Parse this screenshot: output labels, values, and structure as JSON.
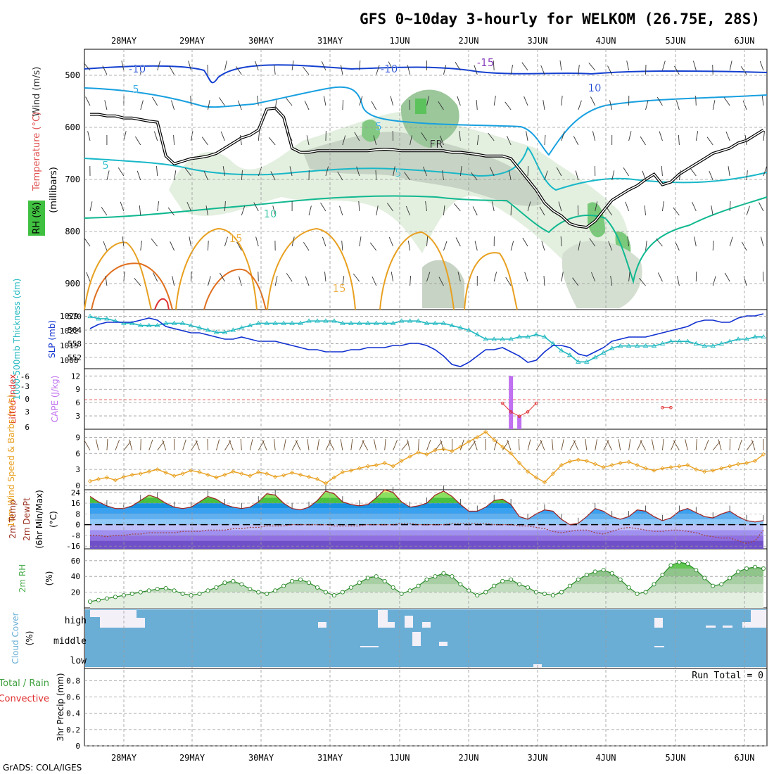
{
  "header": {
    "title": "GFS 0~10day 3-hourly for WELKOM (26.75E, 28S)",
    "credit": "GrADS: COLA/IGES"
  },
  "colors": {
    "rh": "#4caf50",
    "temperature": "#e05050",
    "wind": "#303030",
    "thickness": "#20b8c0",
    "slp": "#1030d0",
    "cape": "#c070f0",
    "lifted": "#e03030",
    "wind10": "#e8a020",
    "rh2m": "#4caf50",
    "cloud": "#6aaed6",
    "cloud_blank": "#f4f0f8",
    "freezing": "#000000"
  },
  "chart_data": {
    "type": "meteogram",
    "date_labels": [
      "28MAY",
      "29MAY",
      "30MAY",
      "31MAY",
      "1JUN",
      "2JUN",
      "3JUN",
      "4JUN",
      "5JUN",
      "6JUN"
    ],
    "time_steps": 81,
    "panels": [
      {
        "id": "upper_air",
        "type": "contour",
        "legend": [
          "Wind (m/s)",
          "Temperature (°C)",
          "RH (%)"
        ],
        "ylabel": "(millibars)",
        "y_ticks": [
          500,
          600,
          700,
          800,
          900
        ],
        "ylim": [
          950,
          450
        ],
        "contour_labels": [
          {
            "text": "-10",
            "at": "28MAY 500mb",
            "series": "Temperature"
          },
          {
            "text": "-10",
            "at": "31MAY-1JUN 495mb",
            "series": "Temperature"
          },
          {
            "text": "-15",
            "at": "2JUN 475mb",
            "series": "Temperature"
          },
          {
            "text": "10",
            "at": "4JUN 525mb",
            "series": "Temperature"
          },
          {
            "text": "5",
            "at": "28MAY 525mb",
            "series": "Temperature"
          },
          {
            "text": "5",
            "at": "1JUN 600mb",
            "series": "Temperature"
          },
          {
            "text": "5",
            "at": "27MAY 655mb",
            "series": "Temperature"
          },
          {
            "text": "5",
            "at": "1JUN 690mb",
            "series": "Temperature"
          },
          {
            "text": "10",
            "at": "31MAY 775mb",
            "series": "Temperature"
          },
          {
            "text": "15",
            "at": "30MAY 815mb",
            "series": "Temperature"
          },
          {
            "text": "15",
            "at": "31MAY 910mb",
            "series": "Temperature"
          },
          {
            "text": "FR",
            "at": "2JUN 640mb",
            "series": "Freezing level"
          }
        ],
        "freezing_level_mb": [
          575,
          575,
          578,
          578,
          582,
          582,
          585,
          588,
          590,
          655,
          670,
          665,
          660,
          658,
          655,
          650,
          640,
          630,
          620,
          615,
          605,
          565,
          563,
          580,
          640,
          648,
          648,
          645,
          645,
          645,
          645,
          645,
          645,
          645,
          643,
          642,
          643,
          645,
          645,
          645,
          645,
          645,
          645,
          648,
          648,
          650,
          652,
          655,
          655,
          655,
          660,
          680,
          700,
          720,
          745,
          760,
          770,
          785,
          790,
          792,
          780,
          760,
          740,
          730,
          720,
          712,
          700,
          690,
          710,
          705,
          690,
          680,
          670,
          660,
          650,
          645,
          640,
          630,
          625,
          615,
          605
        ],
        "rh_shading_note": "green/grey shading around 31MAY-3JUN 550-900mb"
      },
      {
        "id": "thickness_slp",
        "type": "line",
        "labels": [
          "1000-500mb Thickness (dm)",
          "SLP (mb)"
        ],
        "left_ticks": [
          570,
          564,
          558,
          552
        ],
        "right_ticks": [
          1029,
          1022,
          1015,
          1008
        ],
        "series": [
          {
            "name": "Thickness",
            "axis": "left",
            "values": [
              570,
              569,
              569,
              568,
              567,
              567,
              566,
              566,
              566,
              567,
              567,
              567,
              566,
              565,
              564,
              563,
              563,
              564,
              565,
              566,
              567,
              567,
              567,
              567,
              567,
              567,
              568,
              568,
              568,
              568,
              567,
              567,
              567,
              567,
              567,
              567,
              567,
              568,
              568,
              568,
              567,
              567,
              567,
              566,
              565,
              564,
              562,
              560,
              560,
              560,
              560,
              561,
              561,
              562,
              561,
              558,
              555,
              553,
              550,
              550,
              552,
              554,
              556,
              557,
              557,
              557,
              557,
              557,
              558,
              559,
              559,
              559,
              558,
              557,
              557,
              558,
              559,
              560,
              560,
              561,
              561
            ]
          },
          {
            "name": "SLP",
            "axis": "right",
            "values": [
              1023,
              1025,
              1026,
              1026,
              1026,
              1026,
              1027,
              1028,
              1027,
              1024,
              1023,
              1022,
              1021,
              1021,
              1020,
              1019,
              1018,
              1018,
              1019,
              1018,
              1017,
              1017,
              1017,
              1016,
              1015,
              1014,
              1013,
              1013,
              1012,
              1012,
              1012,
              1013,
              1013,
              1014,
              1014,
              1014,
              1015,
              1015,
              1016,
              1016,
              1015,
              1013,
              1010,
              1006,
              1005,
              1007,
              1010,
              1013,
              1013,
              1014,
              1012,
              1010,
              1007,
              1008,
              1012,
              1015,
              1015,
              1014,
              1011,
              1010,
              1012,
              1014,
              1017,
              1018,
              1019,
              1019,
              1019,
              1020,
              1021,
              1022,
              1023,
              1024,
              1026,
              1027,
              1027,
              1026,
              1026,
              1028,
              1029,
              1029,
              1030
            ]
          }
        ]
      },
      {
        "id": "lifted_cape",
        "type": "bar+line",
        "labels": [
          "Lifted Index",
          "CAPE (J/kg)"
        ],
        "left_ticks": [
          "-6",
          "-3",
          "0",
          "3",
          "6"
        ],
        "right_ticks": [
          12,
          9,
          6,
          3
        ],
        "cape": [
          0,
          0,
          0,
          0,
          0,
          0,
          0,
          0,
          0,
          0,
          0,
          0,
          0,
          0,
          0,
          0,
          0,
          0,
          0,
          0,
          0,
          0,
          0,
          0,
          0,
          0,
          0,
          0,
          0,
          0,
          0,
          0,
          0,
          0,
          0,
          0,
          0,
          0,
          0,
          0,
          0,
          0,
          0,
          0,
          0,
          0,
          0,
          0,
          0,
          0,
          12,
          3,
          0,
          0,
          0,
          0,
          0,
          0,
          0,
          0,
          0,
          0,
          0,
          0,
          0,
          0,
          0,
          0,
          0,
          0,
          0,
          0,
          0,
          0,
          0,
          0,
          0,
          0,
          0,
          0,
          0
        ],
        "lifted_index": [
          null,
          null,
          null,
          null,
          null,
          null,
          null,
          null,
          null,
          null,
          null,
          null,
          null,
          null,
          null,
          null,
          null,
          null,
          null,
          null,
          null,
          null,
          null,
          null,
          null,
          null,
          null,
          null,
          null,
          null,
          null,
          null,
          null,
          null,
          null,
          null,
          null,
          null,
          null,
          null,
          null,
          null,
          null,
          null,
          null,
          null,
          null,
          null,
          null,
          6,
          4,
          3,
          4,
          6,
          null,
          null,
          null,
          null,
          null,
          null,
          null,
          null,
          null,
          null,
          null,
          null,
          null,
          null,
          5,
          5,
          null,
          null,
          null,
          null,
          null,
          null,
          null,
          null,
          null,
          null,
          null
        ]
      },
      {
        "id": "wind10m",
        "type": "line",
        "labels": [
          "10m Wind Speed & Barbs (m/s)"
        ],
        "y_ticks": [
          0,
          3,
          6,
          9
        ],
        "ylim": [
          0,
          10.5
        ],
        "values": [
          0.8,
          1.2,
          1.5,
          1.0,
          1.6,
          2.0,
          2.2,
          2.6,
          3.0,
          2.4,
          1.8,
          2.2,
          2.8,
          2.5,
          2.0,
          1.5,
          2.0,
          2.6,
          2.2,
          1.8,
          2.5,
          2.2,
          1.6,
          1.9,
          2.4,
          2.0,
          1.6,
          1.2,
          0.4,
          1.5,
          2.5,
          2.8,
          3.2,
          3.6,
          3.8,
          4.2,
          3.6,
          4.6,
          5.4,
          6.2,
          5.8,
          6.6,
          6.8,
          6.4,
          7.2,
          8.2,
          9.0,
          10.0,
          8.5,
          7.2,
          6.0,
          4.2,
          2.6,
          1.5,
          0.6,
          2.2,
          3.8,
          4.5,
          4.8,
          4.6,
          4.0,
          3.4,
          3.8,
          4.2,
          4.4,
          3.8,
          3.2,
          2.8,
          3.2,
          3.4,
          3.6,
          3.8,
          3.0,
          2.6,
          2.8,
          3.2,
          3.6,
          4.0,
          4.2,
          4.6,
          5.8
        ]
      },
      {
        "id": "temp2m",
        "type": "area",
        "labels": [
          "2m Temp",
          "2m DewPt",
          "(6hr Min/Max)",
          "(°C)"
        ],
        "y_ticks": [
          24,
          16,
          8,
          0,
          -8,
          -16
        ],
        "ylim": [
          -18,
          26
        ],
        "temperature": [
          21,
          17,
          14,
          12,
          12,
          14,
          18,
          22,
          20,
          16,
          13,
          12,
          13,
          17,
          21,
          19,
          15,
          13,
          12,
          13,
          17,
          23,
          22,
          16,
          12,
          11,
          13,
          18,
          25,
          23,
          17,
          15,
          14,
          15,
          20,
          26,
          24,
          17,
          13,
          14,
          16,
          22,
          25,
          21,
          15,
          10,
          10,
          13,
          18,
          19,
          15,
          6,
          4,
          8,
          11,
          10,
          4,
          0,
          1,
          6,
          12,
          10,
          6,
          4,
          6,
          11,
          10,
          6,
          3,
          5,
          10,
          12,
          9,
          6,
          5,
          8,
          10,
          6,
          3,
          2,
          3
        ],
        "dewpoint": [
          -8,
          -8,
          -9,
          -8,
          -8,
          -7,
          -7,
          -6,
          -6,
          -6,
          -6,
          -5,
          -5,
          -5,
          -4,
          -4,
          -4,
          -3,
          -3,
          -2,
          -2,
          -1,
          -1,
          -1,
          0,
          0,
          0,
          0,
          0,
          -1,
          -1,
          -1,
          -1,
          0,
          0,
          0,
          0,
          1,
          1,
          0,
          0,
          0,
          0,
          1,
          1,
          1,
          1,
          1,
          0,
          0,
          0,
          -1,
          -1,
          -2,
          -3,
          -5,
          -6,
          -5,
          -4,
          -4,
          -6,
          -7,
          -5,
          -3,
          -2,
          -3,
          -4,
          -5,
          -5,
          -4,
          -4,
          -5,
          -6,
          -8,
          -9,
          -10,
          -10,
          -12,
          -14,
          -12,
          -4
        ]
      },
      {
        "id": "rh2m",
        "type": "area",
        "labels": [
          "2m RH",
          "(%)"
        ],
        "y_ticks": [
          20,
          40,
          60
        ],
        "ylim": [
          0,
          75
        ],
        "values": [
          8,
          10,
          12,
          14,
          16,
          18,
          20,
          22,
          24,
          25,
          22,
          18,
          16,
          18,
          22,
          26,
          32,
          34,
          30,
          24,
          20,
          18,
          22,
          28,
          34,
          36,
          32,
          26,
          20,
          16,
          20,
          26,
          32,
          38,
          40,
          34,
          26,
          18,
          22,
          28,
          36,
          40,
          44,
          40,
          30,
          22,
          16,
          20,
          28,
          34,
          36,
          30,
          26,
          20,
          18,
          16,
          20,
          28,
          36,
          42,
          46,
          48,
          44,
          36,
          26,
          18,
          20,
          30,
          42,
          54,
          58,
          56,
          48,
          38,
          28,
          30,
          38,
          46,
          50,
          52,
          50
        ]
      },
      {
        "id": "cloud",
        "type": "heatmap",
        "labels": [
          "Cloud Cover",
          "(%)"
        ],
        "y_ticks": [
          "high",
          "middle",
          "low"
        ],
        "note": "blue = full cover; pale blocks = gaps"
      },
      {
        "id": "precip",
        "type": "bar",
        "labels": [
          "Total / Rain",
          "Convective",
          "3hr Precip (mm)"
        ],
        "y_ticks": [
          0,
          0.2,
          0.4,
          0.6,
          0.8
        ],
        "ylim": [
          0,
          0.95
        ],
        "run_total": "Run Total = 0",
        "values": []
      }
    ]
  }
}
